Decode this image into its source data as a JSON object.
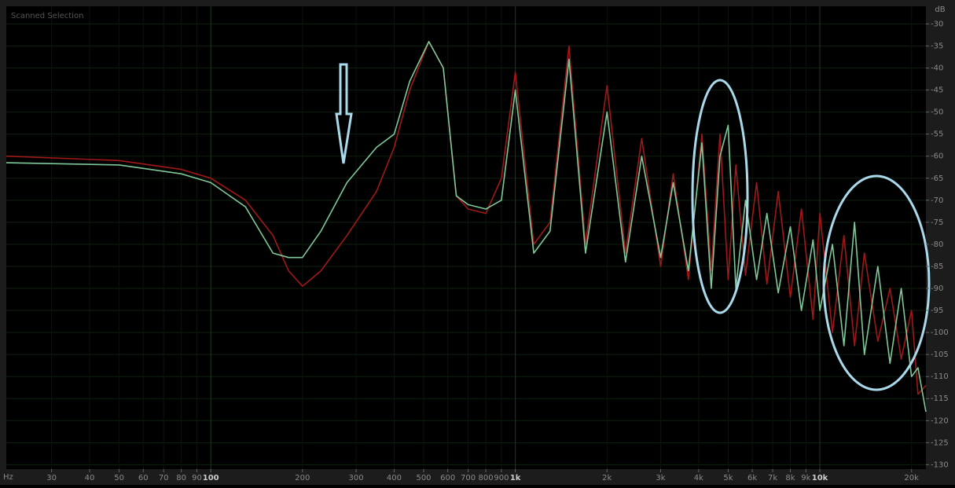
{
  "chart_data": {
    "type": "line",
    "title": "Scanned Selection",
    "x_unit": "Hz",
    "y_unit": "dB",
    "xscale": "log",
    "grid": true,
    "x": [
      21.3,
      50,
      80,
      100,
      130,
      160,
      180,
      200,
      230,
      280,
      350,
      400,
      450,
      520,
      580,
      640,
      700,
      800,
      900,
      1000,
      1150,
      1300,
      1500,
      1700,
      2000,
      2300,
      2600,
      3000,
      3300,
      3700,
      4100,
      4400,
      4700,
      5000,
      5300,
      5700,
      6200,
      6700,
      7300,
      8000,
      8700,
      9500,
      10000,
      11000,
      12000,
      13000,
      14000,
      15500,
      17000,
      18500,
      20000,
      21000,
      22300
    ],
    "series": [
      {
        "name": "Red",
        "color": "#a01818",
        "values": [
          -60,
          -61,
          -63,
          -65,
          -70,
          -78,
          -86,
          -89.5,
          -86,
          -78,
          -68,
          -58,
          -45,
          -34,
          -40,
          -69,
          -72,
          -73,
          -65,
          -41,
          -80,
          -75,
          -35,
          -80,
          -44,
          -82,
          -56,
          -85,
          -64,
          -88,
          -55,
          -86,
          -55,
          -88,
          -62,
          -87,
          -66,
          -89,
          -68,
          -92,
          -72,
          -97,
          -73,
          -100,
          -78,
          -103,
          -82,
          -102,
          -90,
          -106,
          -95,
          -114,
          -112
        ]
      },
      {
        "name": "Green",
        "color": "#7fc89a",
        "values": [
          -61.5,
          -62,
          -64,
          -66,
          -71.5,
          -82,
          -83,
          -83,
          -77,
          -66,
          -58,
          -55,
          -43,
          -34,
          -40,
          -69,
          -71,
          -72,
          -70,
          -45,
          -82,
          -77,
          -38,
          -82,
          -50,
          -84,
          -60,
          -83,
          -66,
          -86,
          -57,
          -90,
          -60,
          -53,
          -90,
          -70,
          -88,
          -73,
          -91,
          -76,
          -95,
          -79,
          -95,
          -80,
          -103,
          -75,
          -105,
          -85,
          -107,
          -90,
          -110,
          -108,
          -118
        ]
      }
    ],
    "xlim": [
      21.3,
      22300
    ],
    "xticks": [
      30,
      40,
      50,
      60,
      70,
      80,
      90,
      100,
      200,
      300,
      400,
      500,
      600,
      700,
      800,
      900,
      {
        "value": 1000,
        "label": "1k"
      },
      {
        "value": 2000,
        "label": "2k"
      },
      {
        "value": 3000,
        "label": "3k"
      },
      {
        "value": 4000,
        "label": "4k"
      },
      {
        "value": 5000,
        "label": "5k"
      },
      {
        "value": 6000,
        "label": "6k"
      },
      {
        "value": 7000,
        "label": "7k"
      },
      {
        "value": 8000,
        "label": "8k"
      },
      {
        "value": 9000,
        "label": "9k"
      },
      {
        "value": 10000,
        "label": "10k"
      },
      {
        "value": 20000,
        "label": "20k"
      }
    ],
    "ylim": [
      -131,
      -26
    ],
    "yticks": [
      -30,
      -35,
      -40,
      -45,
      -50,
      -55,
      -60,
      -65,
      -70,
      -75,
      -80,
      -85,
      -90,
      -95,
      -100,
      -105,
      -110,
      -115,
      -120,
      -125,
      -130
    ]
  }
}
